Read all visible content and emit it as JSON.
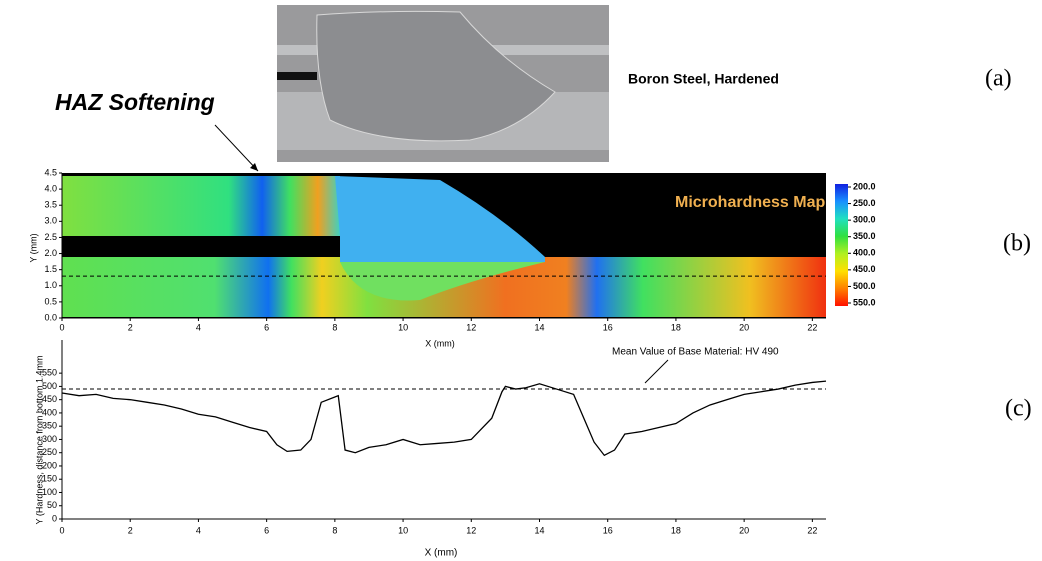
{
  "figure": {
    "annotation": "HAZ Softening",
    "material": "Boron Steel, Hardened",
    "panel_a": "(a)",
    "panel_b": "(b)",
    "panel_c": "(c)"
  },
  "chart_data": [
    {
      "type": "heatmap",
      "title": "Microhardness Map",
      "x_label": "X (mm)",
      "y_label": "Y (mm)",
      "xlim": [
        0,
        22.4
      ],
      "xticks": [
        0,
        2,
        4,
        6,
        8,
        10,
        12,
        14,
        16,
        18,
        20,
        22
      ],
      "ylim": [
        0,
        4.5
      ],
      "yticks": [
        {
          "value": 0,
          "label": "0.0"
        },
        {
          "value": 0.5,
          "label": "0.5"
        },
        {
          "value": 1,
          "label": "1.0"
        },
        {
          "value": 1.5,
          "label": "1.5"
        },
        {
          "value": 2,
          "label": "2.0"
        },
        {
          "value": 2.5,
          "label": "2.5"
        },
        {
          "value": 3,
          "label": "3.0"
        },
        {
          "value": 3.5,
          "label": "3.5"
        },
        {
          "value": 4,
          "label": "4.0"
        },
        {
          "value": 4.5,
          "label": "4.5"
        }
      ],
      "profile_line_y": 1.3,
      "colorbar": {
        "lim": [
          200,
          550
        ],
        "ticks": [
          {
            "value": 200,
            "label": "200.0"
          },
          {
            "value": 250,
            "label": "250.0"
          },
          {
            "value": 300,
            "label": "300.0"
          },
          {
            "value": 350,
            "label": "350.0"
          },
          {
            "value": 400,
            "label": "400.0"
          },
          {
            "value": 450,
            "label": "450.0"
          },
          {
            "value": 500,
            "label": "500.0"
          },
          {
            "value": 550,
            "label": "550.0"
          }
        ],
        "colors": [
          "#1020e0",
          "#1890ff",
          "#20e0c0",
          "#30e040",
          "#b0f020",
          "#ffe000",
          "#ff8000",
          "#ff1000"
        ]
      }
    },
    {
      "type": "line",
      "x_label": "X (mm)",
      "y_label": "Y (Hardness, distance from bottom 1.4mm",
      "xlim": [
        0,
        22.4
      ],
      "xticks": [
        0,
        2,
        4,
        6,
        8,
        10,
        12,
        14,
        16,
        18,
        20,
        22
      ],
      "ylim": [
        0,
        675
      ],
      "yticks": [
        0,
        50,
        100,
        150,
        200,
        250,
        300,
        350,
        400,
        450,
        500,
        550
      ],
      "reference_line": {
        "value": 490,
        "label": "Mean Value of Base Material: HV 490"
      },
      "series": [
        {
          "color": "#000000",
          "x": [
            0,
            0.5,
            1,
            1.5,
            2,
            2.5,
            3,
            3.5,
            4,
            4.5,
            5,
            5.5,
            6,
            6.3,
            6.6,
            7,
            7.3,
            7.6,
            8,
            8.1,
            8.3,
            8.6,
            9,
            9.5,
            10,
            10.5,
            11,
            11.5,
            12,
            12.3,
            12.6,
            12.9,
            13,
            13.3,
            13.6,
            14,
            14.5,
            15,
            15.3,
            15.6,
            15.9,
            16.2,
            16.5,
            17,
            17.5,
            18,
            18.5,
            19,
            19.5,
            20,
            20.5,
            21,
            21.5,
            22,
            22.4
          ],
          "values": [
            475,
            465,
            470,
            455,
            450,
            440,
            430,
            415,
            395,
            385,
            365,
            345,
            330,
            280,
            255,
            260,
            300,
            440,
            460,
            465,
            260,
            250,
            270,
            280,
            300,
            280,
            285,
            290,
            300,
            340,
            380,
            480,
            500,
            490,
            495,
            510,
            490,
            470,
            380,
            290,
            240,
            260,
            320,
            330,
            345,
            360,
            400,
            430,
            450,
            470,
            480,
            490,
            505,
            515,
            520
          ]
        }
      ]
    }
  ]
}
